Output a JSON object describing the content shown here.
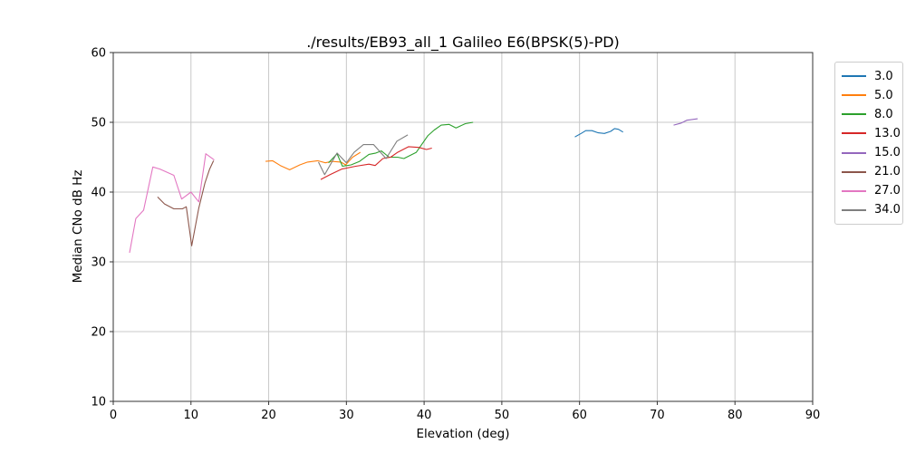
{
  "chart_data": {
    "type": "line",
    "title": "./results/EB93_all_1 Galileo E6(BPSK(5)-PD)",
    "xlabel": "Elevation (deg)",
    "ylabel": "Median CNo dB Hz",
    "xlim": [
      0,
      90
    ],
    "ylim": [
      10,
      60
    ],
    "x_ticks": [
      0,
      10,
      20,
      30,
      40,
      50,
      60,
      70,
      80,
      90
    ],
    "y_ticks": [
      10,
      20,
      30,
      40,
      50,
      60
    ],
    "grid": true,
    "grid_color": "#c8c8c8",
    "spine_color": "#333333",
    "legend_position": "upper right, outside axes",
    "series": [
      {
        "name": "3.0",
        "color": "#1f77b4",
        "points": [
          [
            59.4,
            47.9
          ],
          [
            60.2,
            48.4
          ],
          [
            60.8,
            48.8
          ],
          [
            61.6,
            48.8
          ],
          [
            62.4,
            48.5
          ],
          [
            63.2,
            48.4
          ],
          [
            64.0,
            48.7
          ],
          [
            64.5,
            49.1
          ],
          [
            65.0,
            49.0
          ],
          [
            65.6,
            48.6
          ]
        ]
      },
      {
        "name": "5.0",
        "color": "#ff7f0e",
        "points": [
          [
            19.6,
            44.4
          ],
          [
            20.5,
            44.5
          ],
          [
            21.5,
            43.8
          ],
          [
            22.7,
            43.2
          ],
          [
            24.0,
            43.9
          ],
          [
            25.0,
            44.3
          ],
          [
            26.3,
            44.5
          ],
          [
            27.3,
            44.2
          ],
          [
            28.1,
            44.4
          ],
          [
            29.3,
            44.3
          ],
          [
            29.9,
            43.9
          ],
          [
            30.8,
            45.0
          ],
          [
            31.8,
            45.7
          ]
        ]
      },
      {
        "name": "8.0",
        "color": "#2ca02c",
        "points": [
          [
            27.7,
            44.2
          ],
          [
            28.8,
            45.5
          ],
          [
            29.5,
            43.7
          ],
          [
            30.6,
            43.9
          ],
          [
            31.7,
            44.4
          ],
          [
            32.9,
            45.4
          ],
          [
            33.8,
            45.6
          ],
          [
            34.5,
            45.9
          ],
          [
            35.5,
            45.0
          ],
          [
            36.6,
            45.0
          ],
          [
            37.4,
            44.8
          ],
          [
            39.0,
            45.7
          ],
          [
            40.5,
            48.1
          ],
          [
            41.3,
            48.9
          ],
          [
            42.2,
            49.6
          ],
          [
            43.2,
            49.7
          ],
          [
            44.1,
            49.2
          ],
          [
            45.3,
            49.8
          ],
          [
            46.3,
            50.0
          ]
        ]
      },
      {
        "name": "13.0",
        "color": "#d62728",
        "points": [
          [
            26.7,
            41.8
          ],
          [
            27.9,
            42.5
          ],
          [
            29.4,
            43.3
          ],
          [
            31.2,
            43.7
          ],
          [
            32.9,
            44.0
          ],
          [
            33.7,
            43.8
          ],
          [
            34.7,
            44.8
          ],
          [
            35.7,
            45.0
          ],
          [
            36.6,
            45.7
          ],
          [
            38.0,
            46.5
          ],
          [
            39.3,
            46.4
          ],
          [
            40.3,
            46.1
          ],
          [
            41.0,
            46.3
          ]
        ]
      },
      {
        "name": "15.0",
        "color": "#9467bd",
        "points": [
          [
            72.1,
            49.6
          ],
          [
            73.1,
            49.9
          ],
          [
            73.8,
            50.3
          ],
          [
            75.2,
            50.5
          ]
        ]
      },
      {
        "name": "21.0",
        "color": "#8c564b",
        "points": [
          [
            5.7,
            39.3
          ],
          [
            6.6,
            38.3
          ],
          [
            7.8,
            37.6
          ],
          [
            8.9,
            37.6
          ],
          [
            9.4,
            37.9
          ],
          [
            10.1,
            32.3
          ],
          [
            11.0,
            37.7
          ],
          [
            11.8,
            41.3
          ],
          [
            12.4,
            43.3
          ],
          [
            12.9,
            44.5
          ]
        ]
      },
      {
        "name": "27.0",
        "color": "#e377c2",
        "points": [
          [
            2.1,
            31.3
          ],
          [
            2.9,
            36.2
          ],
          [
            3.9,
            37.4
          ],
          [
            5.1,
            43.6
          ],
          [
            6.0,
            43.3
          ],
          [
            7.8,
            42.4
          ],
          [
            8.8,
            39.0
          ],
          [
            10.0,
            40.0
          ],
          [
            11.0,
            38.6
          ],
          [
            11.9,
            45.5
          ],
          [
            13.0,
            44.6
          ]
        ]
      },
      {
        "name": "34.0",
        "color": "#7f7f7f",
        "points": [
          [
            26.4,
            44.3
          ],
          [
            27.2,
            42.5
          ],
          [
            28.8,
            45.6
          ],
          [
            30.0,
            44.2
          ],
          [
            31.0,
            45.7
          ],
          [
            32.2,
            46.8
          ],
          [
            33.5,
            46.8
          ],
          [
            35.1,
            44.8
          ],
          [
            36.5,
            47.3
          ],
          [
            37.9,
            48.2
          ]
        ]
      }
    ]
  }
}
